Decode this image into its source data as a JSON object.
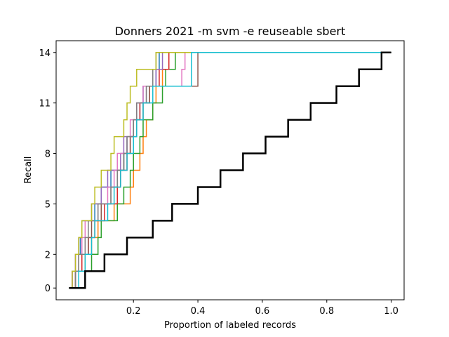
{
  "chart_data": {
    "type": "line",
    "title": "Donners 2021 -m svm -e reuseable sbert",
    "xlabel": "Proportion of labeled records",
    "ylabel": "Recall",
    "xlim": [
      -0.04,
      1.04
    ],
    "ylim": [
      -0.7,
      14.7
    ],
    "xticks": [
      0.2,
      0.4,
      0.6,
      0.8,
      1.0
    ],
    "xtick_labels": [
      "0.2",
      "0.4",
      "0.6",
      "0.8",
      "1.0"
    ],
    "yticks": [
      0,
      2,
      5,
      8,
      11,
      14
    ],
    "ytick_labels": [
      "0",
      "2",
      "5",
      "8",
      "11",
      "14"
    ],
    "grid": false,
    "series_colors": [
      "#1f77b4",
      "#ff7f0e",
      "#2ca02c",
      "#d62728",
      "#9467bd",
      "#8c564b",
      "#e377c2",
      "#7f7f7f",
      "#bcbd22",
      "#17becf"
    ],
    "series": [
      {
        "color": "#1f77b4",
        "steps": [
          [
            0.0,
            0
          ],
          [
            0.01,
            1
          ],
          [
            0.02,
            2
          ],
          [
            0.035,
            3
          ],
          [
            0.04,
            4
          ],
          [
            0.08,
            5
          ],
          [
            0.1,
            6
          ],
          [
            0.13,
            7
          ],
          [
            0.17,
            8
          ],
          [
            0.18,
            9
          ],
          [
            0.2,
            10
          ],
          [
            0.22,
            11
          ],
          [
            0.23,
            12
          ],
          [
            0.27,
            13
          ],
          [
            0.28,
            14
          ],
          [
            1.0,
            14
          ]
        ]
      },
      {
        "color": "#ff7f0e",
        "steps": [
          [
            0.0,
            0
          ],
          [
            0.02,
            1
          ],
          [
            0.05,
            2
          ],
          [
            0.07,
            3
          ],
          [
            0.09,
            4
          ],
          [
            0.14,
            5
          ],
          [
            0.19,
            6
          ],
          [
            0.2,
            7
          ],
          [
            0.22,
            8
          ],
          [
            0.23,
            9
          ],
          [
            0.24,
            10
          ],
          [
            0.26,
            11
          ],
          [
            0.27,
            12
          ],
          [
            0.29,
            13
          ],
          [
            0.31,
            14
          ],
          [
            1.0,
            14
          ]
        ]
      },
      {
        "color": "#2ca02c",
        "steps": [
          [
            0.0,
            0
          ],
          [
            0.05,
            1
          ],
          [
            0.07,
            2
          ],
          [
            0.09,
            3
          ],
          [
            0.1,
            4
          ],
          [
            0.15,
            5
          ],
          [
            0.17,
            6
          ],
          [
            0.19,
            7
          ],
          [
            0.2,
            8
          ],
          [
            0.22,
            9
          ],
          [
            0.23,
            10
          ],
          [
            0.26,
            11
          ],
          [
            0.29,
            12
          ],
          [
            0.3,
            13
          ],
          [
            0.33,
            14
          ],
          [
            1.0,
            14
          ]
        ]
      },
      {
        "color": "#d62728",
        "steps": [
          [
            0.0,
            0
          ],
          [
            0.02,
            1
          ],
          [
            0.04,
            2
          ],
          [
            0.06,
            3
          ],
          [
            0.08,
            4
          ],
          [
            0.11,
            5
          ],
          [
            0.15,
            6
          ],
          [
            0.16,
            7
          ],
          [
            0.18,
            8
          ],
          [
            0.19,
            9
          ],
          [
            0.21,
            10
          ],
          [
            0.22,
            11
          ],
          [
            0.25,
            12
          ],
          [
            0.28,
            13
          ],
          [
            0.31,
            14
          ],
          [
            1.0,
            14
          ]
        ]
      },
      {
        "color": "#9467bd",
        "steps": [
          [
            0.0,
            0
          ],
          [
            0.01,
            1
          ],
          [
            0.02,
            2
          ],
          [
            0.03,
            3
          ],
          [
            0.04,
            4
          ],
          [
            0.07,
            5
          ],
          [
            0.1,
            6
          ],
          [
            0.12,
            7
          ],
          [
            0.16,
            8
          ],
          [
            0.17,
            9
          ],
          [
            0.2,
            10
          ],
          [
            0.21,
            11
          ],
          [
            0.24,
            12
          ],
          [
            0.27,
            13
          ],
          [
            0.29,
            14
          ],
          [
            1.0,
            14
          ]
        ]
      },
      {
        "color": "#8c564b",
        "steps": [
          [
            0.0,
            0
          ],
          [
            0.02,
            1
          ],
          [
            0.03,
            2
          ],
          [
            0.06,
            3
          ],
          [
            0.07,
            4
          ],
          [
            0.1,
            5
          ],
          [
            0.13,
            6
          ],
          [
            0.15,
            7
          ],
          [
            0.17,
            8
          ],
          [
            0.19,
            9
          ],
          [
            0.2,
            10
          ],
          [
            0.23,
            11
          ],
          [
            0.25,
            12
          ],
          [
            0.4,
            13
          ],
          [
            0.4,
            14
          ],
          [
            1.0,
            14
          ]
        ]
      },
      {
        "color": "#e377c2",
        "steps": [
          [
            0.0,
            0
          ],
          [
            0.01,
            1
          ],
          [
            0.02,
            2
          ],
          [
            0.04,
            3
          ],
          [
            0.05,
            4
          ],
          [
            0.09,
            5
          ],
          [
            0.12,
            6
          ],
          [
            0.14,
            7
          ],
          [
            0.15,
            8
          ],
          [
            0.18,
            9
          ],
          [
            0.19,
            10
          ],
          [
            0.21,
            11
          ],
          [
            0.23,
            12
          ],
          [
            0.35,
            13
          ],
          [
            0.36,
            14
          ],
          [
            1.0,
            14
          ]
        ]
      },
      {
        "color": "#7f7f7f",
        "steps": [
          [
            0.0,
            0
          ],
          [
            0.02,
            1
          ],
          [
            0.03,
            2
          ],
          [
            0.05,
            3
          ],
          [
            0.06,
            4
          ],
          [
            0.09,
            5
          ],
          [
            0.13,
            6
          ],
          [
            0.15,
            7
          ],
          [
            0.17,
            8
          ],
          [
            0.18,
            9
          ],
          [
            0.2,
            10
          ],
          [
            0.21,
            11
          ],
          [
            0.24,
            12
          ],
          [
            0.26,
            13
          ],
          [
            0.27,
            14
          ],
          [
            1.0,
            14
          ]
        ]
      },
      {
        "color": "#bcbd22",
        "steps": [
          [
            0.0,
            0
          ],
          [
            0.01,
            1
          ],
          [
            0.02,
            2
          ],
          [
            0.03,
            3
          ],
          [
            0.04,
            4
          ],
          [
            0.07,
            5
          ],
          [
            0.08,
            6
          ],
          [
            0.1,
            7
          ],
          [
            0.13,
            8
          ],
          [
            0.14,
            9
          ],
          [
            0.17,
            10
          ],
          [
            0.18,
            11
          ],
          [
            0.19,
            12
          ],
          [
            0.21,
            13
          ],
          [
            0.27,
            14
          ],
          [
            1.0,
            14
          ]
        ]
      },
      {
        "color": "#17becf",
        "steps": [
          [
            0.0,
            0
          ],
          [
            0.03,
            1
          ],
          [
            0.05,
            2
          ],
          [
            0.07,
            3
          ],
          [
            0.08,
            4
          ],
          [
            0.12,
            5
          ],
          [
            0.14,
            6
          ],
          [
            0.16,
            7
          ],
          [
            0.18,
            8
          ],
          [
            0.2,
            9
          ],
          [
            0.21,
            10
          ],
          [
            0.23,
            11
          ],
          [
            0.26,
            12
          ],
          [
            0.38,
            13
          ],
          [
            0.38,
            14
          ],
          [
            1.0,
            14
          ]
        ]
      },
      {
        "color": "#000000",
        "thick": true,
        "steps": [
          [
            0.0,
            0
          ],
          [
            0.05,
            1
          ],
          [
            0.11,
            2
          ],
          [
            0.18,
            3
          ],
          [
            0.26,
            4
          ],
          [
            0.32,
            5
          ],
          [
            0.4,
            6
          ],
          [
            0.47,
            7
          ],
          [
            0.54,
            8
          ],
          [
            0.61,
            9
          ],
          [
            0.68,
            10
          ],
          [
            0.75,
            11
          ],
          [
            0.83,
            12
          ],
          [
            0.9,
            13
          ],
          [
            0.97,
            14
          ],
          [
            1.0,
            14
          ]
        ]
      }
    ]
  }
}
